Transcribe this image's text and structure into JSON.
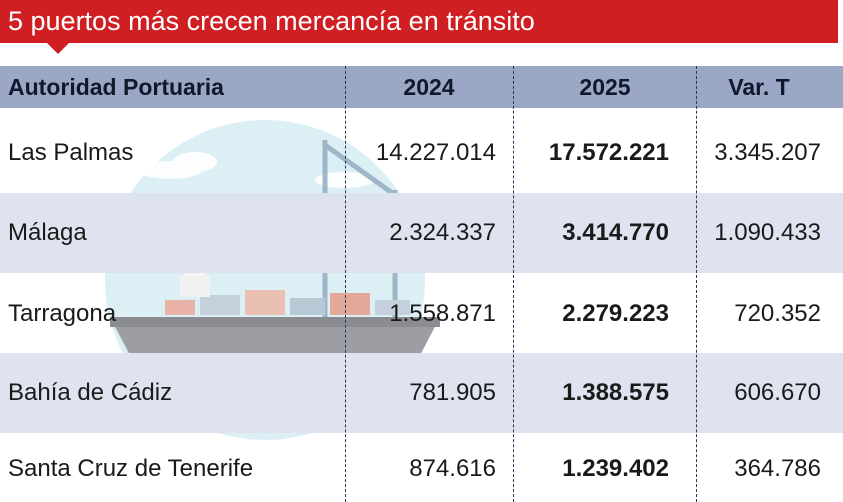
{
  "title": "5 puertos más crecen mercancía en tránsito",
  "colors": {
    "title_bg": "#d01f23",
    "header_bg": "#9aa7c5",
    "band_bg": "#dfe3ef",
    "divider": "#27375e"
  },
  "illustration": {
    "icon": "cargo-ship-port-icon"
  },
  "table": {
    "headers": {
      "name": "Autoridad Portuaria",
      "y2024": "2024",
      "y2025": "2025",
      "var": "Var. T"
    },
    "rows": [
      {
        "name": "Las Palmas",
        "y2024": "14.227.014",
        "y2025": "17.572.221",
        "var": "3.345.207"
      },
      {
        "name": "Málaga",
        "y2024": "2.324.337",
        "y2025": "3.414.770",
        "var": "1.090.433"
      },
      {
        "name": "Tarragona",
        "y2024": "1.558.871",
        "y2025": "2.279.223",
        "var": "720.352"
      },
      {
        "name": "Bahía de Cádiz",
        "y2024": "781.905",
        "y2025": "1.388.575",
        "var": "606.670"
      },
      {
        "name": "Santa Cruz de Tenerife",
        "y2024": "874.616",
        "y2025": "1.239.402",
        "var": "364.786"
      }
    ]
  }
}
